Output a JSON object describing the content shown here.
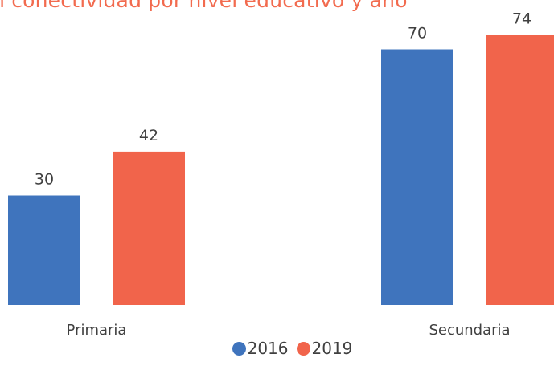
{
  "chart_data": {
    "type": "bar",
    "title": "n conectividad por nivel educativo y año",
    "categories": [
      "Primaria",
      "Secundaria"
    ],
    "series": [
      {
        "name": "2016",
        "color": "#3f74bd",
        "values": [
          30,
          70
        ]
      },
      {
        "name": "2019",
        "color": "#f1644b",
        "values": [
          42,
          74
        ]
      }
    ],
    "xlabel": "",
    "ylabel": "",
    "ylim": [
      0,
      80
    ],
    "grid": false,
    "legend_position": "bottom"
  }
}
